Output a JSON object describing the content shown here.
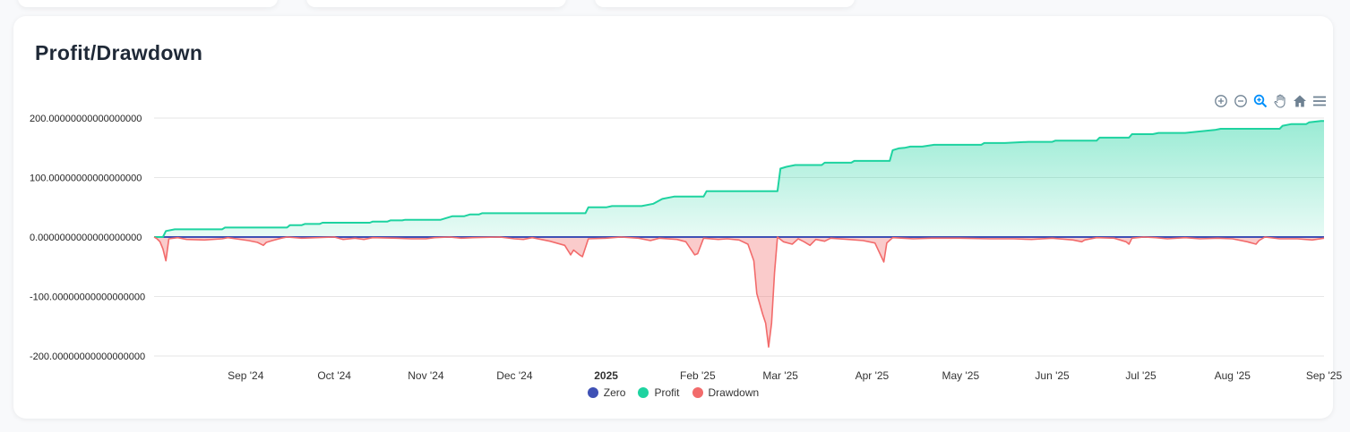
{
  "page": {
    "title": "Profit/Drawdown"
  },
  "colors": {
    "zero": "#3f51b5",
    "profit": "#1ed3a0",
    "drawdown": "#f26b6b"
  },
  "toolbar": {
    "icons": [
      "zoom-in-icon",
      "zoom-out-icon",
      "selection-zoom-icon",
      "pan-hand-icon",
      "home-reset-icon",
      "menu-icon"
    ]
  },
  "legend": [
    {
      "label": "Zero",
      "color": "#3f51b5"
    },
    {
      "label": "Profit",
      "color": "#1ed3a0"
    },
    {
      "label": "Drawdown",
      "color": "#f26b6b"
    }
  ],
  "chart_data": {
    "type": "area",
    "title": "Profit/Drawdown",
    "xlabel": "",
    "ylabel": "",
    "ylim": [
      -200,
      200
    ],
    "xlim": [
      "2024-08-01",
      "2025-09-01"
    ],
    "grid": true,
    "legend_position": "bottom-center",
    "y_ticks": [
      {
        "value": 200,
        "label": "200.00000000000000000"
      },
      {
        "value": 100,
        "label": "100.00000000000000000"
      },
      {
        "value": 0,
        "label": "0.0000000000000000000"
      },
      {
        "value": -100,
        "label": "-100.00000000000000000"
      },
      {
        "value": -200,
        "label": "-200.00000000000000000"
      }
    ],
    "x_ticks": [
      {
        "date": "2024-09-01",
        "label": "Sep '24",
        "bold": false
      },
      {
        "date": "2024-10-01",
        "label": "Oct '24",
        "bold": false
      },
      {
        "date": "2024-11-01",
        "label": "Nov '24",
        "bold": false
      },
      {
        "date": "2024-12-01",
        "label": "Dec '24",
        "bold": false
      },
      {
        "date": "2025-01-01",
        "label": "2025",
        "bold": true
      },
      {
        "date": "2025-02-01",
        "label": "Feb '25",
        "bold": false
      },
      {
        "date": "2025-03-01",
        "label": "Mar '25",
        "bold": false
      },
      {
        "date": "2025-04-01",
        "label": "Apr '25",
        "bold": false
      },
      {
        "date": "2025-05-01",
        "label": "May '25",
        "bold": false
      },
      {
        "date": "2025-06-01",
        "label": "Jun '25",
        "bold": false
      },
      {
        "date": "2025-07-01",
        "label": "Jul '25",
        "bold": false
      },
      {
        "date": "2025-08-01",
        "label": "Aug '25",
        "bold": false
      },
      {
        "date": "2025-09-01",
        "label": "Sep '25",
        "bold": false
      }
    ],
    "series": [
      {
        "name": "Zero",
        "type": "line",
        "points": [
          [
            "2024-08-01",
            0
          ],
          [
            "2025-09-01",
            0
          ]
        ]
      },
      {
        "name": "Profit",
        "type": "area",
        "points": [
          [
            "2024-08-01",
            0
          ],
          [
            "2024-08-04",
            0
          ],
          [
            "2024-08-05",
            10
          ],
          [
            "2024-08-08",
            13
          ],
          [
            "2024-08-24",
            13
          ],
          [
            "2024-08-25",
            16
          ],
          [
            "2024-09-15",
            16
          ],
          [
            "2024-09-16",
            20
          ],
          [
            "2024-09-20",
            20
          ],
          [
            "2024-09-21",
            22
          ],
          [
            "2024-09-26",
            22
          ],
          [
            "2024-09-27",
            24
          ],
          [
            "2024-10-13",
            24
          ],
          [
            "2024-10-14",
            26
          ],
          [
            "2024-10-19",
            26
          ],
          [
            "2024-10-20",
            28
          ],
          [
            "2024-10-24",
            28
          ],
          [
            "2024-10-25",
            29
          ],
          [
            "2024-11-06",
            29
          ],
          [
            "2024-11-08",
            32
          ],
          [
            "2024-11-10",
            35
          ],
          [
            "2024-11-14",
            35
          ],
          [
            "2024-11-16",
            38
          ],
          [
            "2024-11-19",
            38
          ],
          [
            "2024-11-20",
            40
          ],
          [
            "2024-12-25",
            40
          ],
          [
            "2024-12-26",
            50
          ],
          [
            "2025-01-01",
            50
          ],
          [
            "2025-01-03",
            52
          ],
          [
            "2025-01-13",
            52
          ],
          [
            "2025-01-17",
            56
          ],
          [
            "2025-01-20",
            64
          ],
          [
            "2025-01-24",
            68
          ],
          [
            "2025-02-03",
            68
          ],
          [
            "2025-02-04",
            77
          ],
          [
            "2025-02-28",
            77
          ],
          [
            "2025-03-01",
            115
          ],
          [
            "2025-03-03",
            118
          ],
          [
            "2025-03-06",
            121
          ],
          [
            "2025-03-15",
            121
          ],
          [
            "2025-03-16",
            125
          ],
          [
            "2025-03-25",
            125
          ],
          [
            "2025-03-26",
            128
          ],
          [
            "2025-04-07",
            128
          ],
          [
            "2025-04-08",
            146
          ],
          [
            "2025-04-10",
            149
          ],
          [
            "2025-04-12",
            150
          ],
          [
            "2025-04-14",
            152
          ],
          [
            "2025-04-18",
            152
          ],
          [
            "2025-04-22",
            155
          ],
          [
            "2025-05-08",
            155
          ],
          [
            "2025-05-09",
            158
          ],
          [
            "2025-05-16",
            158
          ],
          [
            "2025-05-24",
            160
          ],
          [
            "2025-06-01",
            160
          ],
          [
            "2025-06-02",
            162
          ],
          [
            "2025-06-16",
            162
          ],
          [
            "2025-06-17",
            167
          ],
          [
            "2025-06-27",
            167
          ],
          [
            "2025-06-28",
            173
          ],
          [
            "2025-07-05",
            173
          ],
          [
            "2025-07-07",
            175
          ],
          [
            "2025-07-16",
            175
          ],
          [
            "2025-07-20",
            177
          ],
          [
            "2025-07-26",
            180
          ],
          [
            "2025-07-28",
            182
          ],
          [
            "2025-08-17",
            182
          ],
          [
            "2025-08-18",
            187
          ],
          [
            "2025-08-21",
            190
          ],
          [
            "2025-08-26",
            190
          ],
          [
            "2025-08-27",
            193
          ],
          [
            "2025-08-31",
            195
          ],
          [
            "2025-09-01",
            195
          ]
        ]
      },
      {
        "name": "Drawdown",
        "type": "area",
        "points": [
          [
            "2024-08-01",
            0
          ],
          [
            "2024-08-02",
            -3
          ],
          [
            "2024-08-03",
            -8
          ],
          [
            "2024-08-04",
            -20
          ],
          [
            "2024-08-05",
            -40
          ],
          [
            "2024-08-06",
            -3
          ],
          [
            "2024-08-09",
            -1
          ],
          [
            "2024-08-12",
            -4
          ],
          [
            "2024-08-18",
            -5
          ],
          [
            "2024-08-24",
            -3
          ],
          [
            "2024-08-26",
            -1
          ],
          [
            "2024-09-02",
            -6
          ],
          [
            "2024-09-05",
            -9
          ],
          [
            "2024-09-07",
            -14
          ],
          [
            "2024-09-08",
            -9
          ],
          [
            "2024-09-10",
            -6
          ],
          [
            "2024-09-13",
            -2
          ],
          [
            "2024-09-15",
            0
          ],
          [
            "2024-09-20",
            -2
          ],
          [
            "2024-10-01",
            0
          ],
          [
            "2024-10-04",
            -4
          ],
          [
            "2024-10-08",
            -2
          ],
          [
            "2024-10-11",
            -4
          ],
          [
            "2024-10-14",
            -1
          ],
          [
            "2024-10-22",
            -2
          ],
          [
            "2024-10-27",
            -3
          ],
          [
            "2024-11-01",
            -3
          ],
          [
            "2024-11-04",
            -1
          ],
          [
            "2024-11-09",
            0
          ],
          [
            "2024-11-13",
            -2
          ],
          [
            "2024-11-17",
            -1
          ],
          [
            "2024-11-26",
            0
          ],
          [
            "2024-12-01",
            -3
          ],
          [
            "2024-12-04",
            -4
          ],
          [
            "2024-12-07",
            -1
          ],
          [
            "2024-12-13",
            -7
          ],
          [
            "2024-12-18",
            -14
          ],
          [
            "2024-12-20",
            -30
          ],
          [
            "2024-12-21",
            -22
          ],
          [
            "2024-12-23",
            -30
          ],
          [
            "2024-12-24",
            -33
          ],
          [
            "2024-12-26",
            -3
          ],
          [
            "2025-01-01",
            -2
          ],
          [
            "2025-01-06",
            0
          ],
          [
            "2025-01-12",
            -2
          ],
          [
            "2025-01-16",
            -6
          ],
          [
            "2025-01-19",
            -2
          ],
          [
            "2025-01-25",
            -4
          ],
          [
            "2025-01-28",
            -8
          ],
          [
            "2025-01-31",
            -30
          ],
          [
            "2025-02-01",
            -28
          ],
          [
            "2025-02-03",
            -2
          ],
          [
            "2025-02-08",
            -4
          ],
          [
            "2025-02-11",
            -3
          ],
          [
            "2025-02-15",
            -5
          ],
          [
            "2025-02-18",
            -12
          ],
          [
            "2025-02-20",
            -40
          ],
          [
            "2025-02-21",
            -95
          ],
          [
            "2025-02-23",
            -130
          ],
          [
            "2025-02-24",
            -145
          ],
          [
            "2025-02-25",
            -185
          ],
          [
            "2025-02-26",
            -145
          ],
          [
            "2025-02-27",
            -60
          ],
          [
            "2025-02-28",
            0
          ],
          [
            "2025-03-02",
            -8
          ],
          [
            "2025-03-05",
            -12
          ],
          [
            "2025-03-07",
            -3
          ],
          [
            "2025-03-09",
            -8
          ],
          [
            "2025-03-11",
            -14
          ],
          [
            "2025-03-13",
            -4
          ],
          [
            "2025-03-16",
            -7
          ],
          [
            "2025-03-18",
            -2
          ],
          [
            "2025-03-24",
            -4
          ],
          [
            "2025-03-29",
            -6
          ],
          [
            "2025-04-02",
            -10
          ],
          [
            "2025-04-05",
            -42
          ],
          [
            "2025-04-06",
            -10
          ],
          [
            "2025-04-08",
            -1
          ],
          [
            "2025-04-15",
            -3
          ],
          [
            "2025-04-21",
            -2
          ],
          [
            "2025-05-01",
            -2
          ],
          [
            "2025-05-11",
            -3
          ],
          [
            "2025-05-19",
            -3
          ],
          [
            "2025-05-25",
            -4
          ],
          [
            "2025-06-01",
            -2
          ],
          [
            "2025-06-08",
            -5
          ],
          [
            "2025-06-11",
            -8
          ],
          [
            "2025-06-12",
            -5
          ],
          [
            "2025-06-16",
            -1
          ],
          [
            "2025-06-22",
            -2
          ],
          [
            "2025-06-26",
            -8
          ],
          [
            "2025-06-27",
            -12
          ],
          [
            "2025-06-28",
            -2
          ],
          [
            "2025-07-02",
            0
          ],
          [
            "2025-07-06",
            -1
          ],
          [
            "2025-07-10",
            -3
          ],
          [
            "2025-07-16",
            -1
          ],
          [
            "2025-07-21",
            -3
          ],
          [
            "2025-07-27",
            -2
          ],
          [
            "2025-08-01",
            -3
          ],
          [
            "2025-08-06",
            -8
          ],
          [
            "2025-08-09",
            -12
          ],
          [
            "2025-08-10",
            -6
          ],
          [
            "2025-08-12",
            0
          ],
          [
            "2025-08-17",
            -3
          ],
          [
            "2025-08-23",
            -3
          ],
          [
            "2025-08-28",
            -5
          ],
          [
            "2025-09-01",
            -2
          ]
        ]
      }
    ]
  }
}
